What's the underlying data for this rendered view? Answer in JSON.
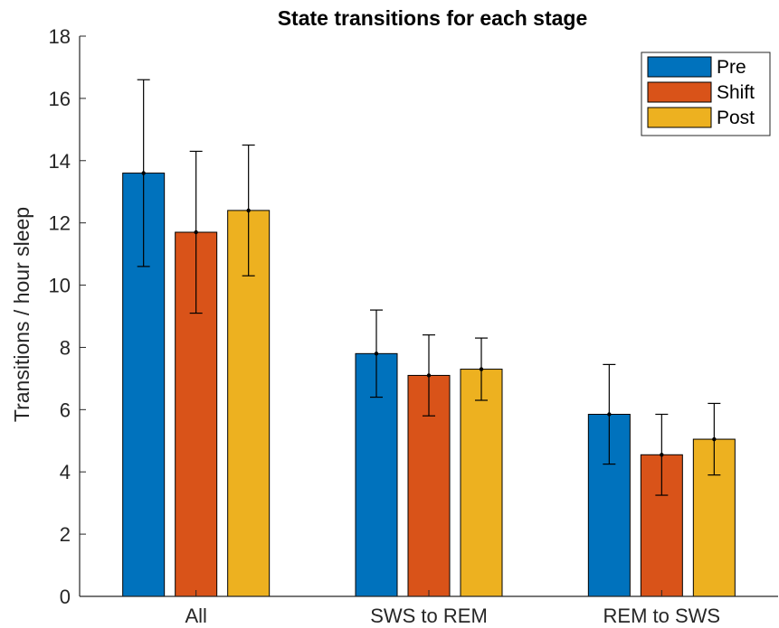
{
  "chart_data": {
    "type": "bar",
    "title": "State transitions for each stage",
    "xlabel": "",
    "ylabel": "Transitions / hour sleep",
    "categories": [
      "All",
      "SWS to REM",
      "REM to SWS"
    ],
    "ylim": [
      0,
      18
    ],
    "yticks": [
      0,
      2,
      4,
      6,
      8,
      10,
      12,
      14,
      16,
      18
    ],
    "grid": false,
    "legend_position": "top-right",
    "series": [
      {
        "name": "Pre",
        "color": "#0072BD",
        "values": [
          13.6,
          7.8,
          5.85
        ],
        "error": [
          3.0,
          1.4,
          1.6
        ]
      },
      {
        "name": "Shift",
        "color": "#D95319",
        "values": [
          11.7,
          7.1,
          4.55
        ],
        "error": [
          2.6,
          1.3,
          1.3
        ]
      },
      {
        "name": "Post",
        "color": "#EDB120",
        "values": [
          12.4,
          7.3,
          5.05
        ],
        "error": [
          2.1,
          1.0,
          1.15
        ]
      }
    ]
  }
}
